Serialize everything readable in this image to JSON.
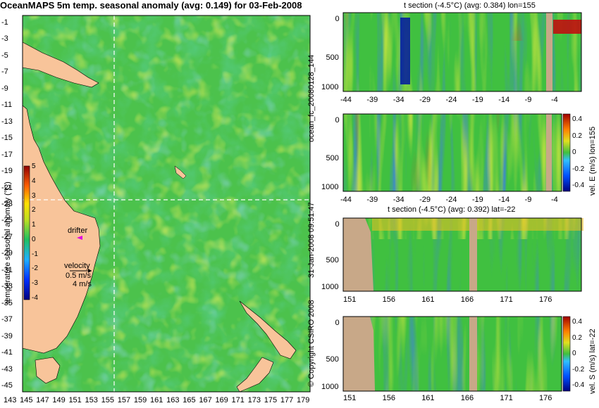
{
  "map": {
    "title": "OceanMAPS 5m temp. seasonal anomaly (avg: 0.149) for 03-Feb-2008",
    "lat_ticks": [
      "-1",
      "-3",
      "-5",
      "-7",
      "-9",
      "-11",
      "-13",
      "-15",
      "-17",
      "-19",
      "-21",
      "-23",
      "-25",
      "-27",
      "-29",
      "-31",
      "-33",
      "-35",
      "-37",
      "-39",
      "-41",
      "-43",
      "-45"
    ],
    "lon_ticks": [
      "143",
      "145",
      "147",
      "149",
      "151",
      "153",
      "155",
      "157",
      "159",
      "161",
      "163",
      "165",
      "167",
      "169",
      "171",
      "173",
      "175",
      "177",
      "179"
    ],
    "colorbar": {
      "label": "temperature seasonal anomaly (°C)",
      "ticks": [
        "5",
        "4",
        "3",
        "2",
        "1",
        "0",
        "-1",
        "-2",
        "-3",
        "-4"
      ]
    },
    "drifter_label": "drifter",
    "velocity_label": "velocity",
    "velocity_value": "0.5 m/s",
    "velocity_value2": "4 m/s",
    "land_color": "#f8c49a",
    "drifter_color": "#e000e0"
  },
  "sections": [
    {
      "title": "t section (-4.5°C) (avg: 0.384) lon=155",
      "x_ticks": [
        "-44",
        "-39",
        "-34",
        "-29",
        "-24",
        "-19",
        "-14",
        "-9",
        "-4"
      ],
      "y_ticks": [
        "0",
        "500",
        "1000"
      ]
    },
    {
      "title": "",
      "x_ticks": [
        "-44",
        "-39",
        "-34",
        "-29",
        "-24",
        "-19",
        "-14",
        "-9",
        "-4"
      ],
      "y_ticks": [
        "0",
        "500",
        "1000"
      ]
    },
    {
      "title": "t section (-4.5°C) (avg: 0.392) lat=-22",
      "x_ticks": [
        "151",
        "156",
        "161",
        "166",
        "171",
        "176"
      ],
      "y_ticks": [
        "0",
        "500",
        "1000"
      ]
    },
    {
      "title": "",
      "x_ticks": [
        "151",
        "156",
        "161",
        "166",
        "171",
        "176"
      ],
      "y_ticks": [
        "0",
        "500",
        "1000"
      ]
    }
  ],
  "side_labels": {
    "forecast": "ocean_fc_20080128_144",
    "date": "31-Jan-2008 09:51:47",
    "copyright": "© Copyright CSIRO 2008"
  },
  "colorbar_e": {
    "label": "vel. E (m/s) lon=155",
    "ticks": [
      "0.4",
      "0.2",
      "0",
      "-0.2",
      "-0.4"
    ]
  },
  "colorbar_s": {
    "label": "vel. S (m/s) lat=-22",
    "ticks": [
      "0.4",
      "0.2",
      "0",
      "-0.2",
      "-0.4"
    ]
  },
  "chart_data": {
    "type": "heatmap",
    "title": "OceanMAPS 5m temp. seasonal anomaly (avg: 0.149) for 03-Feb-2008",
    "xlim": [
      143,
      180
    ],
    "ylim": [
      -45,
      0
    ],
    "crosshair": {
      "lon": 155,
      "lat": -22
    },
    "colorbar_range": [
      -4,
      5
    ]
  }
}
